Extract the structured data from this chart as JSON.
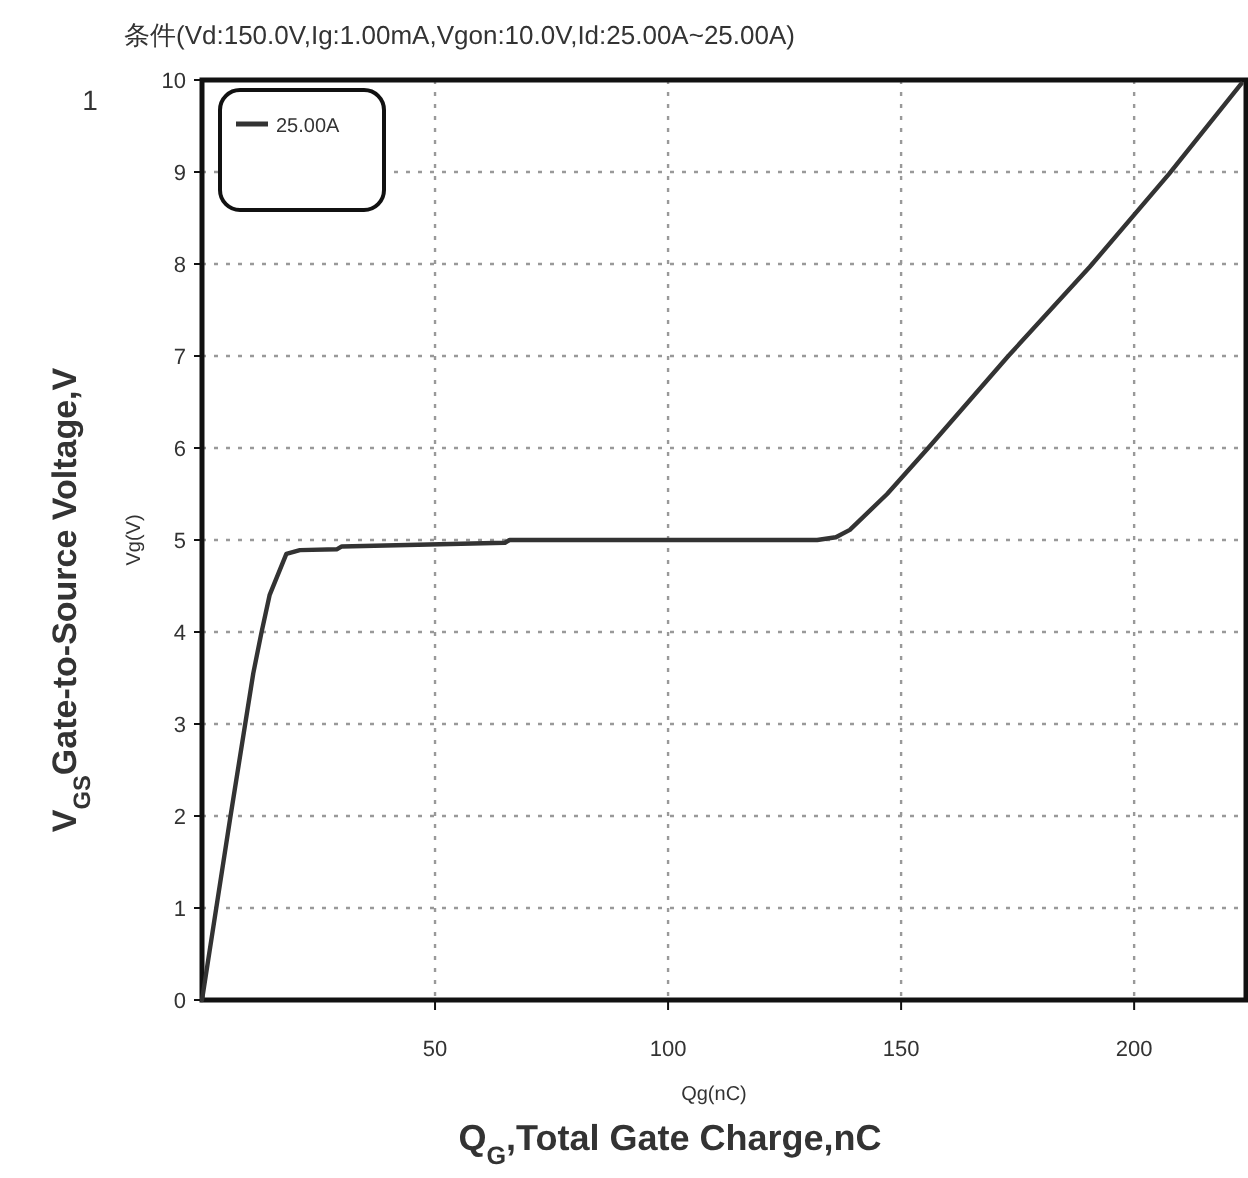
{
  "chart_data": {
    "type": "line",
    "title": "条件(Vd:150.0V,Ig:1.00mA,Vgon:10.0V,Id:25.00A~25.00A)",
    "xlabel": "Qg(nC)",
    "ylabel": "Vg(V)",
    "annotations": [
      "1",
      "Q$_{G}$,Total Gate Charge,nC",
      "V$_{GS}$Gate-to-Source Voltage,V"
    ],
    "xlim": [
      0,
      224
    ],
    "xticks": [
      50,
      100,
      150,
      200
    ],
    "ylim": [
      0,
      10
    ],
    "yticks": [
      0,
      1,
      2,
      3,
      4,
      5,
      6,
      7,
      8,
      9,
      10
    ],
    "grid": true,
    "legend": "top left",
    "line_style": "solid",
    "series": [
      {
        "name": "25.00A",
        "color": "#333333",
        "x": [
          0,
          6,
          11,
          12.7,
          14.5,
          18.1,
          21,
          29,
          30,
          65,
          66,
          132,
          136,
          139,
          147,
          156,
          173,
          190.5,
          207.5,
          223
        ],
        "values": [
          0,
          1.96,
          3.55,
          3.98,
          4.4,
          4.85,
          4.89,
          4.9,
          4.93,
          4.97,
          5.0,
          5.0,
          5.03,
          5.11,
          5.5,
          6.01,
          7.0,
          7.97,
          8.98,
          9.96
        ]
      }
    ]
  }
}
